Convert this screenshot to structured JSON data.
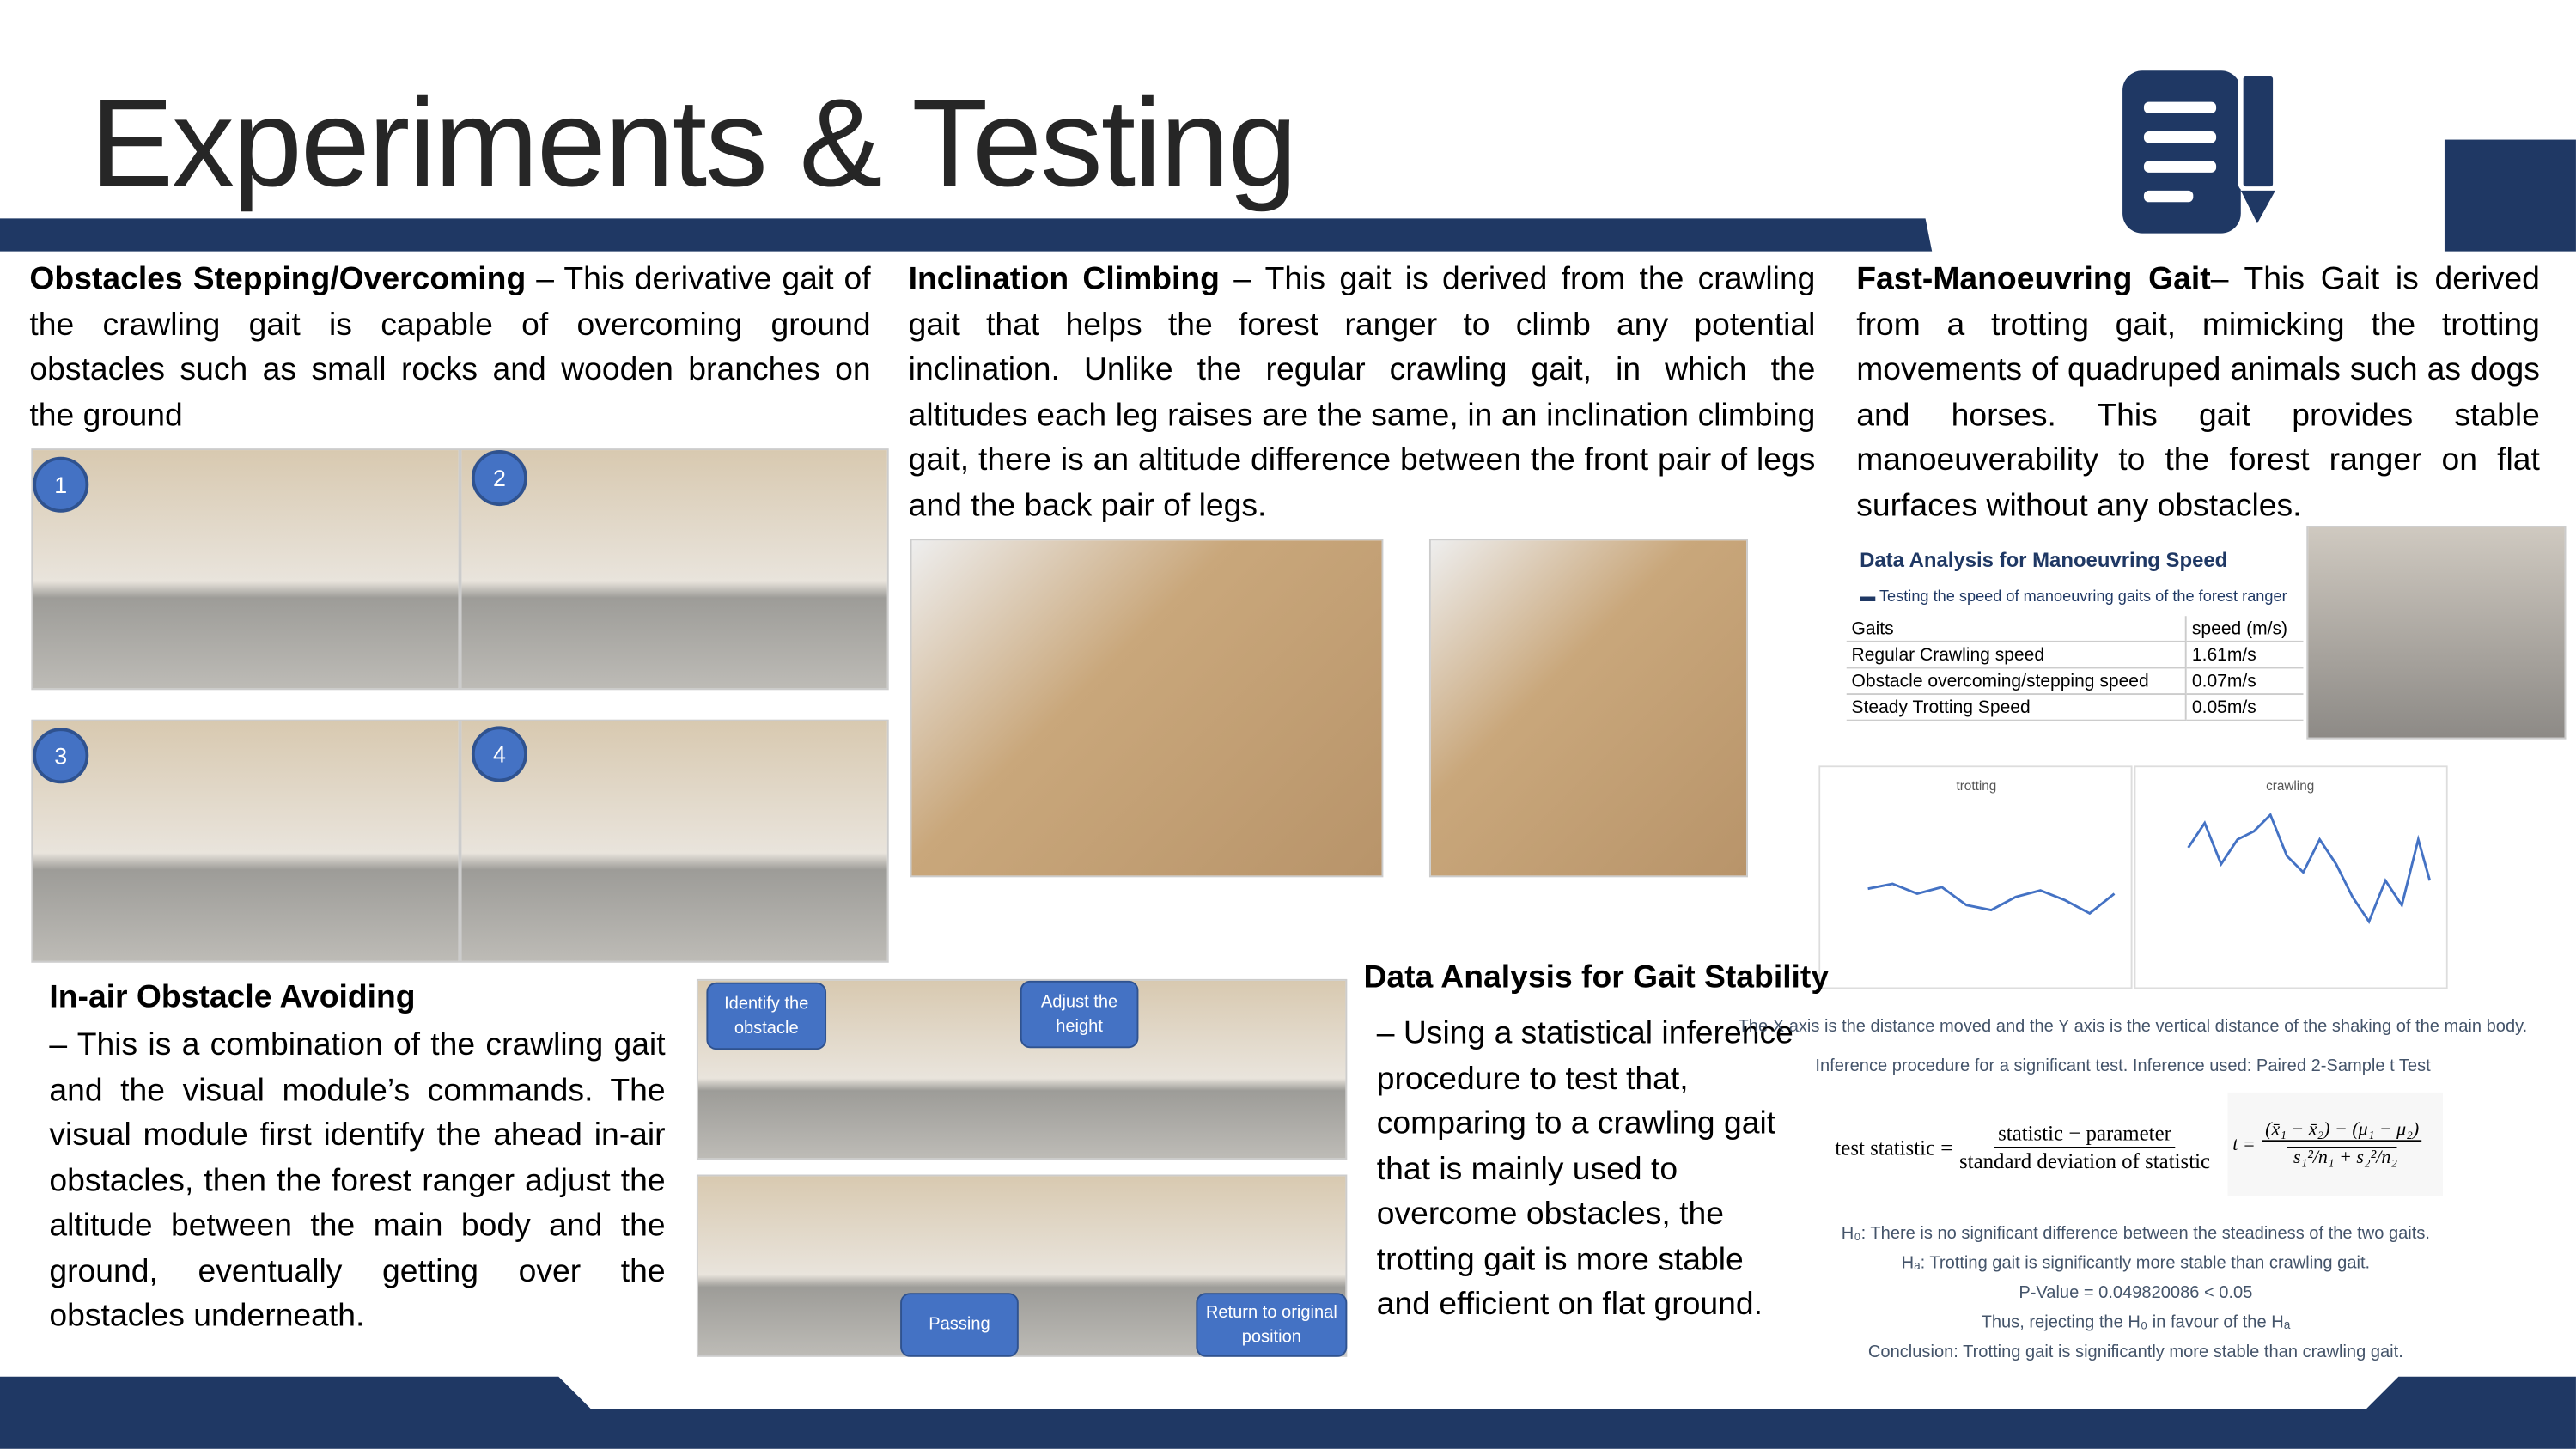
{
  "header": {
    "title": "Experiments & Testing"
  },
  "sections": [
    {
      "heading": "Obstacles Stepping/Overcoming",
      "text": "– This derivative gait of the crawling gait is capable of overcoming ground obstacles such as small rocks and wooden branches on the ground",
      "step_labels": [
        "1",
        "2",
        "3",
        "4"
      ]
    },
    {
      "heading": "Inclination Climbing",
      "text": "– This gait is derived from the crawling gait that helps the forest ranger to climb any potential inclination. Unlike the regular crawling gait, in which the altitudes each leg raises are the same, in an inclination climbing gait, there is an altitude difference between the front pair of legs and the back pair of legs."
    },
    {
      "heading": "Fast-Manoeuvring Gait",
      "text": "– This Gait is derived from a trotting gait, mimicking the trotting movements of quadruped animals such as dogs and horses. This gait provides stable manoeuverability to the forest ranger on flat surfaces without any obstacles."
    },
    {
      "heading": "In-air Obstacle Avoiding",
      "text": "– This is a combination of the crawling gait and the visual module’s commands. The visual module first identify the ahead in-air obstacles, then the forest ranger adjust the altitude between the main body and the ground, eventually getting over the obstacles underneath.",
      "step_labels": [
        "Identify the obstacle",
        "Adjust the height",
        "Passing",
        "Return to original position"
      ]
    },
    {
      "heading": "Data Analysis for Gait Stability",
      "text": "– Using a statistical inference procedure to test that, comparing to a crawling gait that is mainly used to overcome obstacles, the trotting gait is more stable and efficient on flat ground."
    }
  ],
  "speed_table": {
    "title": "Data Analysis for Manoeuvring Speed",
    "subtitle": "Testing the speed of manoeuvring gaits of the forest ranger",
    "header": [
      "Gaits",
      "speed (m/s)"
    ],
    "rows": [
      [
        "Regular Crawling speed",
        "1.61m/s"
      ],
      [
        "Obstacle overcoming/stepping speed",
        "0.07m/s"
      ],
      [
        "Steady Trotting  Speed",
        "0.05m/s"
      ]
    ]
  },
  "plots": {
    "titles": [
      "trotting",
      "crawling"
    ],
    "caption": "The X axis is the distance moved and the Y axis is the vertical distance of the shaking of the main body."
  },
  "inference": {
    "procedure": "Inference procedure for a significant test. Inference used: Paired 2-Sample t Test",
    "formula_lhs": "test statistic =",
    "formula_num": "statistic − parameter",
    "formula_den": "standard deviation of statistic",
    "t_lhs": "t =",
    "t_num": "(x̄₁ − x̄₂) − (μ₁ − μ₂)",
    "t_den": "s₁²/n₁ + s₂²/n₂",
    "lines": [
      "H₀: There is no significant difference between the steadiness of the two gaits.",
      "Hₐ: Trotting gait is significantly more stable than crawling gait.",
      "P-Value = 0.049820086 < 0.05",
      "Thus, rejecting the H₀ in favour of the Hₐ",
      "Conclusion: Trotting gait is significantly more stable than crawling gait."
    ]
  }
}
